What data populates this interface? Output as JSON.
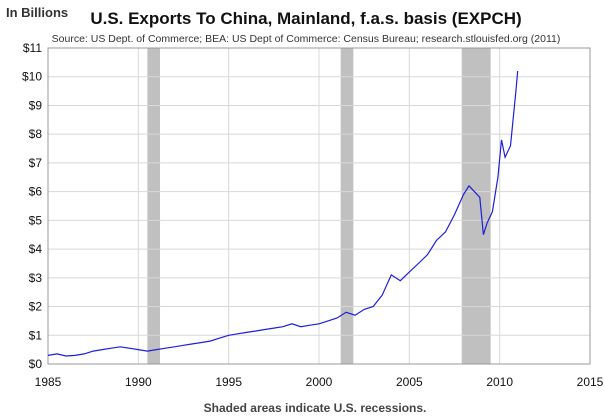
{
  "chart_data": {
    "type": "line",
    "title": "U.S. Exports To China, Mainland, f.a.s. basis (EXPCH)",
    "source": "Source: US Dept. of Commerce; BEA: US Dept of Commerce: Census Bureau; research.stlouisfed.org (2011)",
    "ylabel": "In Billions",
    "footnote": "Shaded areas indicate U.S. recessions.",
    "xlim": [
      1985,
      2015
    ],
    "ylim": [
      0,
      11
    ],
    "xticks": [
      "1985",
      "1990",
      "1995",
      "2000",
      "2005",
      "2010",
      "2015"
    ],
    "yticks": [
      "$0",
      "$1",
      "$2",
      "$3",
      "$4",
      "$5",
      "$6",
      "$7",
      "$8",
      "$9",
      "$10",
      "$11"
    ],
    "grid": true,
    "line_color": "#1f1fd6",
    "recession_color": "#c0c0c0",
    "recessions": [
      [
        1990.5,
        1991.2
      ],
      [
        2001.2,
        2001.9
      ],
      [
        2007.9,
        2009.5
      ]
    ],
    "series": [
      {
        "values_x": [
          1985.0,
          1985.5,
          1986.0,
          1986.5,
          1987.0,
          1987.5,
          1988.0,
          1988.5,
          1989.0,
          1989.5,
          1990.0,
          1990.5,
          1991.0,
          1991.5,
          1992.0,
          1992.5,
          1993.0,
          1993.5,
          1994.0,
          1994.5,
          1995.0,
          1995.5,
          1996.0,
          1996.5,
          1997.0,
          1997.5,
          1998.0,
          1998.5,
          1999.0,
          1999.5,
          2000.0,
          2000.5,
          2001.0,
          2001.5,
          2002.0,
          2002.5,
          2003.0,
          2003.5,
          2004.0,
          2004.5,
          2005.0,
          2005.5,
          2006.0,
          2006.5,
          2007.0,
          2007.5,
          2008.0,
          2008.3,
          2008.6,
          2008.9,
          2009.1,
          2009.3,
          2009.6,
          2009.9,
          2010.1,
          2010.3,
          2010.6,
          2010.9,
          2011.0
        ],
        "values_y": [
          0.3,
          0.35,
          0.28,
          0.3,
          0.35,
          0.45,
          0.5,
          0.55,
          0.6,
          0.55,
          0.5,
          0.45,
          0.5,
          0.55,
          0.6,
          0.65,
          0.7,
          0.75,
          0.8,
          0.9,
          1.0,
          1.05,
          1.1,
          1.15,
          1.2,
          1.25,
          1.3,
          1.4,
          1.3,
          1.35,
          1.4,
          1.5,
          1.6,
          1.8,
          1.7,
          1.9,
          2.0,
          2.4,
          3.1,
          2.9,
          3.2,
          3.5,
          3.8,
          4.3,
          4.6,
          5.2,
          5.9,
          6.2,
          6.0,
          5.8,
          4.5,
          4.9,
          5.3,
          6.5,
          7.8,
          7.2,
          7.6,
          9.5,
          10.2
        ]
      }
    ]
  }
}
